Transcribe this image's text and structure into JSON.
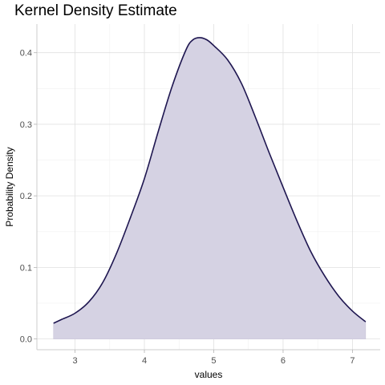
{
  "chart_data": {
    "type": "area",
    "title": "Kernel Density Estimate",
    "xlabel": "values",
    "ylabel": "Probability Density",
    "xlim": [
      2.45,
      7.4
    ],
    "ylim": [
      -0.015,
      0.44
    ],
    "x_ticks": [
      3,
      4,
      5,
      6,
      7
    ],
    "x_tick_labels": [
      "3",
      "4",
      "5",
      "6",
      "7"
    ],
    "y_ticks": [
      0.0,
      0.1,
      0.2,
      0.3,
      0.4
    ],
    "y_tick_labels": [
      "0.0",
      "0.1",
      "0.2",
      "0.3",
      "0.4"
    ],
    "grid": true,
    "series": [
      {
        "fill_color": "#d5d2e3",
        "line_color": "#1e1650",
        "x": [
          2.69,
          2.8,
          3.0,
          3.2,
          3.4,
          3.6,
          3.8,
          4.0,
          4.2,
          4.4,
          4.6,
          4.7,
          4.8,
          4.9,
          5.0,
          5.2,
          5.4,
          5.6,
          5.8,
          6.0,
          6.2,
          6.4,
          6.6,
          6.8,
          7.0,
          7.19
        ],
        "y": [
          0.022,
          0.027,
          0.036,
          0.052,
          0.079,
          0.12,
          0.17,
          0.224,
          0.29,
          0.353,
          0.404,
          0.418,
          0.421,
          0.418,
          0.41,
          0.39,
          0.357,
          0.31,
          0.26,
          0.212,
          0.165,
          0.122,
          0.088,
          0.06,
          0.039,
          0.024
        ]
      }
    ]
  }
}
